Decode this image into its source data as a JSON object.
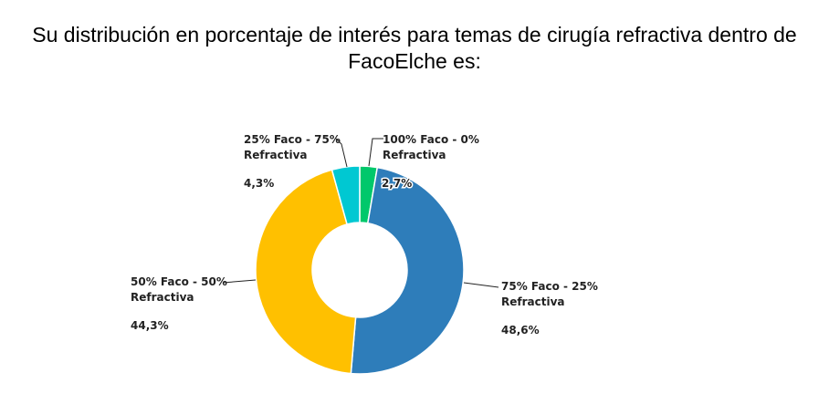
{
  "title": {
    "line1": "Su distribución en porcentaje de interés para temas de cirugía refractiva dentro de",
    "line2": "FacoElche es:"
  },
  "chart_data": {
    "type": "pie",
    "donut": true,
    "title": "Su distribución en porcentaje de interés para temas de cirugía refractiva dentro de FacoElche es:",
    "slices": [
      {
        "line1": "100% Faco - 0%",
        "line2": "Refractiva",
        "value": 2.7,
        "value_label": "2,7%",
        "color": "#00c86b"
      },
      {
        "line1": "75% Faco - 25%",
        "line2": "Refractiva",
        "value": 48.6,
        "value_label": "48,6%",
        "color": "#2e7dba"
      },
      {
        "line1": "50% Faco - 50%",
        "line2": "Refractiva",
        "value": 44.3,
        "value_label": "44,3%",
        "color": "#ffc000"
      },
      {
        "line1": "25% Faco - 75%",
        "line2": "Refractiva",
        "value": 4.3,
        "value_label": "4,3%",
        "color": "#00c8d2"
      }
    ]
  }
}
